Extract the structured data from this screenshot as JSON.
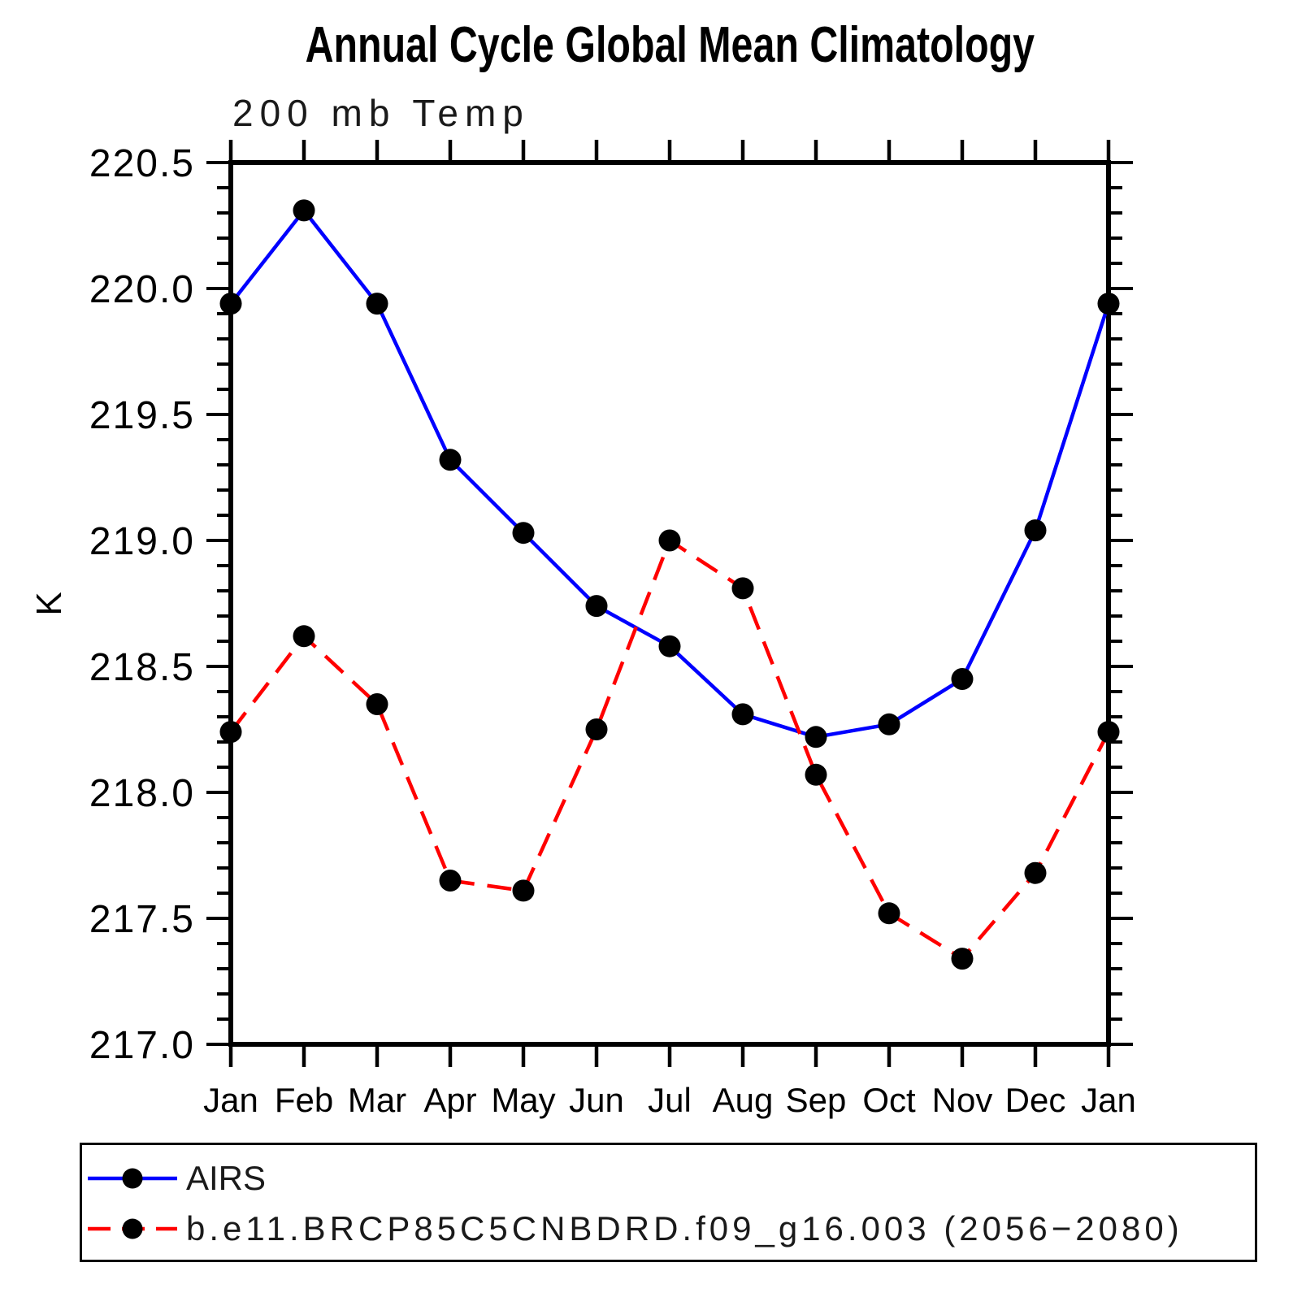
{
  "chart_data": {
    "type": "line",
    "title": "Annual Cycle Global Mean Climatology",
    "subtitle": "200 mb Temp",
    "ylabel": "K",
    "xlabel": "",
    "categories": [
      "Jan",
      "Feb",
      "Mar",
      "Apr",
      "May",
      "Jun",
      "Jul",
      "Aug",
      "Sep",
      "Oct",
      "Nov",
      "Dec",
      "Jan"
    ],
    "ylim": [
      217.0,
      220.5
    ],
    "ytick_major": 0.5,
    "ytick_minor": 0.1,
    "grid": false,
    "legend_position": "bottom-left",
    "axis_color": "#000000",
    "series": [
      {
        "name": "AIRS",
        "color": "#0000ff",
        "line_style": "solid",
        "marker": "filled-circle",
        "marker_color": "#000000",
        "values": [
          219.94,
          220.31,
          219.94,
          219.32,
          219.03,
          218.74,
          218.58,
          218.31,
          218.22,
          218.27,
          218.45,
          219.04,
          219.94
        ]
      },
      {
        "name": "b.e11.BRCP85C5CNBDRD.f09_g16.003 (2056−2080)",
        "color": "#ff0000",
        "line_style": "dashed",
        "marker": "filled-circle",
        "marker_color": "#000000",
        "values": [
          218.24,
          218.62,
          218.35,
          217.65,
          217.61,
          218.25,
          219.0,
          218.81,
          218.07,
          217.52,
          217.34,
          217.68,
          218.24
        ]
      }
    ]
  }
}
